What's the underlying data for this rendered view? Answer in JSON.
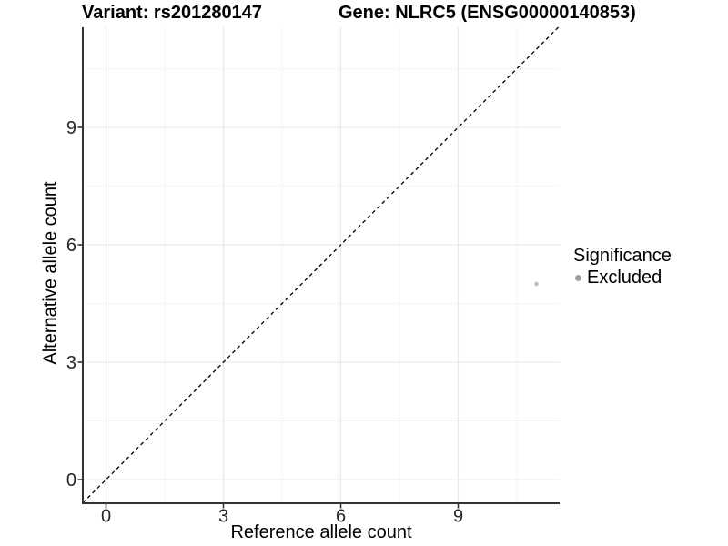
{
  "header": {
    "variant_title": "Variant: rs201280147",
    "gene_title": "Gene: NLRC5 (ENSG00000140853)"
  },
  "axes": {
    "x": {
      "label": "Reference allele count",
      "ticks": [
        "0",
        "3",
        "6",
        "9"
      ]
    },
    "y": {
      "label": "Alternative allele count",
      "ticks": [
        "0",
        "3",
        "6",
        "9"
      ]
    }
  },
  "legend": {
    "title": "Significance",
    "items": [
      {
        "label": "Excluded",
        "color": "#a1a1a1"
      }
    ]
  },
  "colors": {
    "grid_major": "#e9e9e9",
    "grid_minor": "#f5f5f5",
    "axis_line": "#333333",
    "tick_text": "#262626",
    "identity_line": "#000000",
    "point": "#bdbdbd",
    "legend_point": "#a1a1a1"
  },
  "chart_data": {
    "type": "scatter",
    "title_left": "Variant: rs201280147",
    "title_right": "Gene: NLRC5 (ENSG00000140853)",
    "xlabel": "Reference allele count",
    "ylabel": "Alternative allele count",
    "xlim": [
      -0.6,
      11.6
    ],
    "ylim": [
      -0.6,
      11.6
    ],
    "x_ticks": [
      0,
      3,
      6,
      9
    ],
    "y_ticks": [
      0,
      3,
      6,
      9
    ],
    "x_minor_ticks": [
      1.5,
      4.5,
      7.5,
      10.5
    ],
    "y_minor_ticks": [
      1.5,
      4.5,
      7.5,
      10.5
    ],
    "grid": true,
    "legend_position": "right",
    "series": [
      {
        "name": "Excluded",
        "color": "#bdbdbd",
        "points": [
          {
            "x": 11,
            "y": 5
          }
        ]
      }
    ],
    "reference_line": {
      "type": "identity",
      "equation": "y = x",
      "style": "dashed",
      "color": "#000000"
    }
  }
}
